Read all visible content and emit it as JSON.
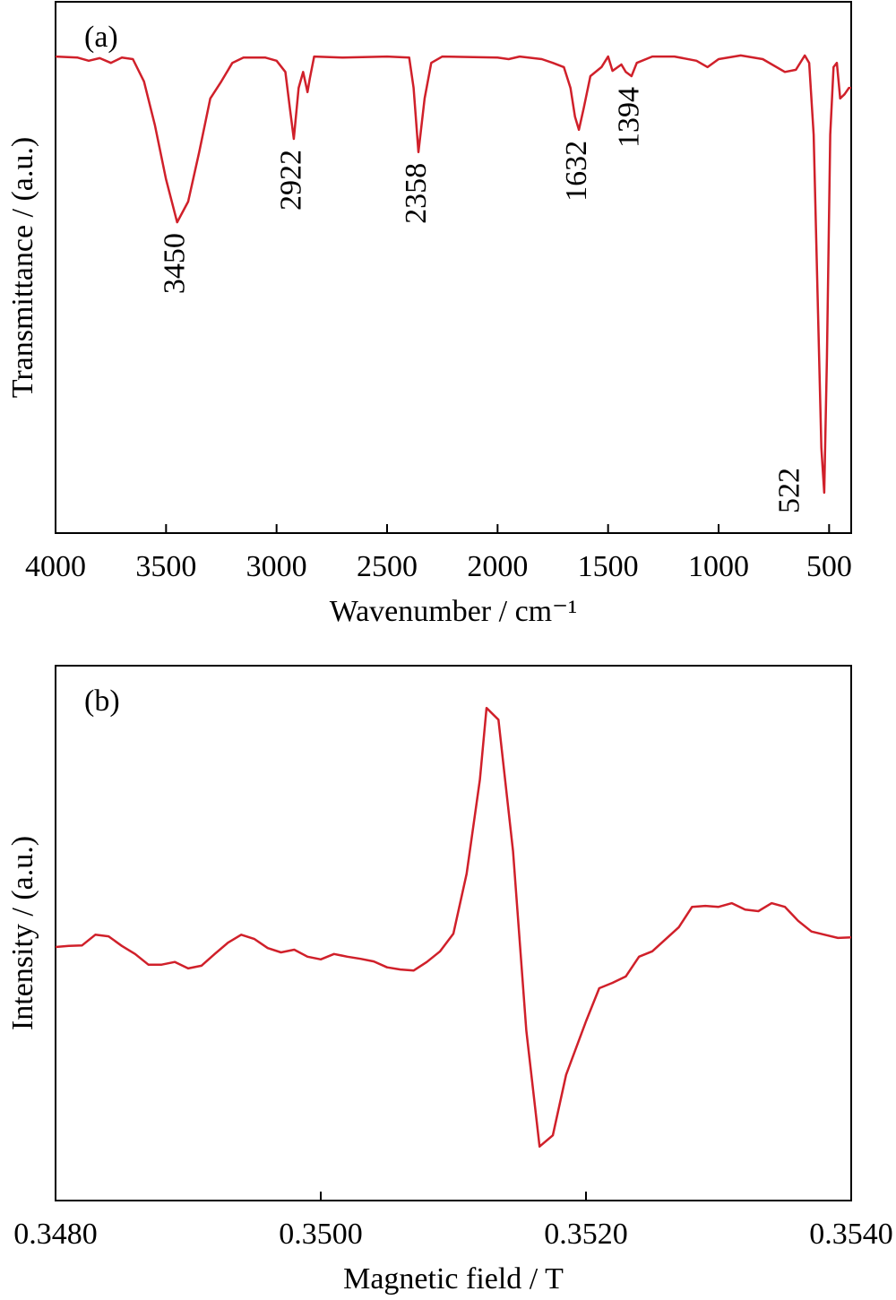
{
  "chart_data": [
    {
      "type": "line",
      "label": "(a)",
      "xlabel": "Wavenumber / cm⁻¹",
      "ylabel": "Transmittance / (a.u.)",
      "xlim": [
        4000,
        400
      ],
      "xticks": [
        4000,
        3500,
        3000,
        2500,
        2000,
        1500,
        1000,
        500
      ],
      "ylim": [
        0,
        100
      ],
      "color": "#d0202a",
      "peaks": [
        3450,
        2922,
        2358,
        1632,
        1394,
        522
      ],
      "x": [
        4000,
        3900,
        3850,
        3800,
        3750,
        3700,
        3650,
        3600,
        3550,
        3500,
        3450,
        3400,
        3350,
        3300,
        3250,
        3200,
        3150,
        3100,
        3050,
        3000,
        2960,
        2940,
        2922,
        2900,
        2880,
        2860,
        2850,
        2830,
        2700,
        2500,
        2400,
        2380,
        2358,
        2330,
        2300,
        2250,
        2000,
        1950,
        1900,
        1800,
        1750,
        1700,
        1670,
        1650,
        1632,
        1610,
        1580,
        1530,
        1500,
        1480,
        1440,
        1420,
        1394,
        1370,
        1300,
        1200,
        1100,
        1050,
        1000,
        900,
        800,
        700,
        650,
        610,
        590,
        570,
        550,
        535,
        522,
        510,
        495,
        480,
        465,
        450,
        430,
        410,
        400
      ],
      "values": [
        89.7,
        89.5,
        88.9,
        89.4,
        88.5,
        89.5,
        89.2,
        85,
        76.7,
        66.6,
        58.5,
        62.4,
        71.7,
        81.8,
        85,
        88.5,
        89.5,
        89.5,
        89.5,
        88.9,
        86.8,
        80,
        74.2,
        83.8,
        86.8,
        83,
        85.5,
        89.7,
        89.5,
        89.7,
        89.5,
        83.8,
        71.7,
        81.8,
        88.5,
        89.7,
        89.5,
        89.2,
        89.7,
        89.2,
        88.5,
        87.7,
        83.8,
        78.4,
        75.9,
        80,
        86,
        87.7,
        89.7,
        87,
        88.2,
        86.8,
        86,
        88.5,
        89.7,
        89.7,
        88.9,
        87.7,
        89.2,
        89.9,
        89.2,
        86.8,
        87.2,
        89.9,
        88.5,
        75,
        41.3,
        16,
        7.6,
        32.9,
        75,
        87.7,
        88.5,
        81.8,
        82.6,
        83.8,
        83.8
      ]
    },
    {
      "type": "line",
      "label": "(b)",
      "xlabel": "Magnetic field / T",
      "ylabel": "Intensity / (a.u.)",
      "xlim": [
        0.348,
        0.354
      ],
      "xticks": [
        {
          "value": 0.348,
          "label": "0.3480"
        },
        {
          "value": 0.35,
          "label": "0.3500"
        },
        {
          "value": 0.352,
          "label": "0.3520"
        },
        {
          "value": 0.354,
          "label": "0.3540"
        }
      ],
      "ylim": [
        0,
        100
      ],
      "color": "#d0202a",
      "x": [
        0.348,
        0.3481,
        0.3482,
        0.3483,
        0.3484,
        0.3485,
        0.3486,
        0.3487,
        0.3488,
        0.3489,
        0.349,
        0.3491,
        0.3492,
        0.3493,
        0.3494,
        0.3495,
        0.3496,
        0.3497,
        0.3498,
        0.3499,
        0.35,
        0.3501,
        0.3502,
        0.3503,
        0.3504,
        0.3505,
        0.3506,
        0.3507,
        0.3508,
        0.3509,
        0.351,
        0.3511,
        0.3512,
        0.35125,
        0.35134,
        0.35145,
        0.35155,
        0.35165,
        0.35175,
        0.35185,
        0.352,
        0.3521,
        0.3522,
        0.3523,
        0.3524,
        0.3525,
        0.3527,
        0.3528,
        0.3529,
        0.353,
        0.3531,
        0.3532,
        0.3533,
        0.3534,
        0.3535,
        0.3536,
        0.3537,
        0.3538,
        0.3539,
        0.354
      ],
      "values": [
        47.4,
        47.6,
        47.7,
        49.7,
        49.4,
        47.6,
        46.1,
        44.1,
        44.1,
        44.6,
        43.4,
        43.9,
        46.1,
        48.2,
        49.7,
        48.9,
        47.2,
        46.4,
        46.9,
        45.6,
        45.1,
        46.1,
        45.6,
        45.2,
        44.7,
        43.6,
        43.2,
        43.0,
        44.6,
        46.6,
        49.9,
        61.1,
        78.7,
        92.1,
        89.9,
        65.3,
        31.8,
        10.1,
        12.2,
        23.5,
        33.5,
        39.7,
        40.7,
        41.9,
        45.6,
        46.6,
        51.1,
        54.9,
        55.1,
        54.9,
        55.6,
        54.4,
        54.1,
        55.6,
        54.9,
        52.3,
        50.3,
        49.7,
        49.1,
        49.2
      ]
    }
  ]
}
